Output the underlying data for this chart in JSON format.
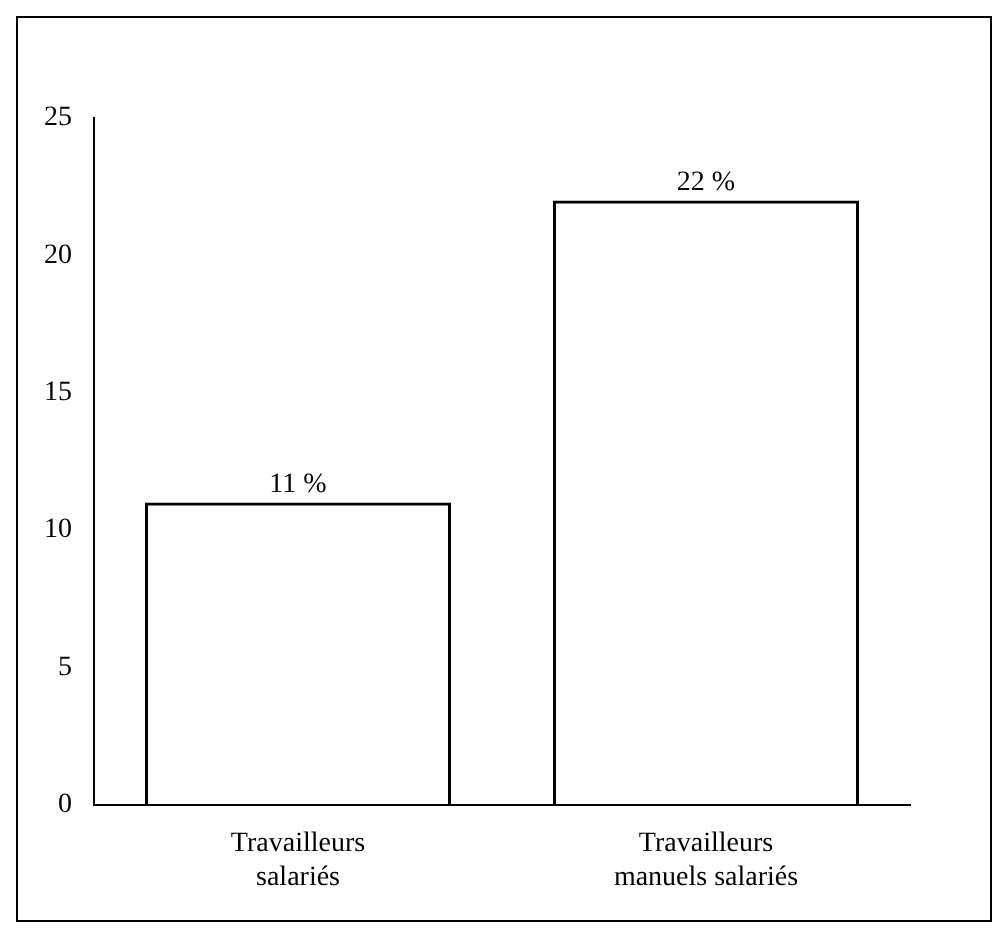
{
  "chart_data": {
    "type": "bar",
    "categories": [
      "Travailleurs salariés",
      "Travailleurs manuels salariés"
    ],
    "values": [
      11,
      22
    ],
    "color": "#000000",
    "value_labels": [
      "11 %",
      "22 %"
    ],
    "ylim": [
      0,
      25
    ],
    "yticks": [
      0,
      5,
      10,
      15,
      20,
      25
    ],
    "grid": false,
    "legend": false
  }
}
